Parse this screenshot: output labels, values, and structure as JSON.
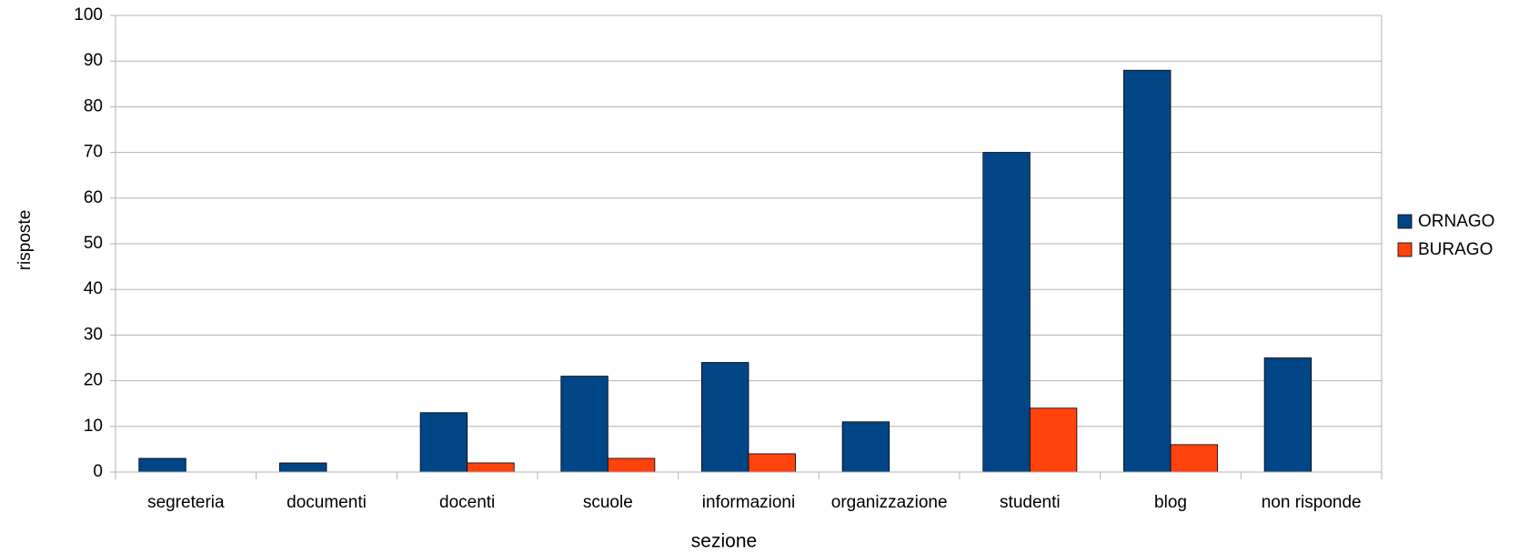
{
  "chart_data": {
    "type": "bar",
    "xlabel": "sezione",
    "ylabel": "risposte",
    "categories": [
      "segreteria",
      "documenti",
      "docenti",
      "scuole",
      "informazioni",
      "organizzazione",
      "studenti",
      "blog",
      "non risponde"
    ],
    "series": [
      {
        "name": "ORNAGO",
        "color": "#004586",
        "values": [
          3,
          2,
          13,
          21,
          24,
          11,
          70,
          88,
          25
        ]
      },
      {
        "name": "BURAGO",
        "color": "#ff420e",
        "values": [
          0,
          0,
          2,
          3,
          4,
          0,
          14,
          6,
          0
        ]
      }
    ],
    "ylim": [
      0,
      100
    ],
    "yticks": [
      0,
      10,
      20,
      30,
      40,
      50,
      60,
      70,
      80,
      90,
      100
    ],
    "grid": true,
    "legend": "right"
  }
}
